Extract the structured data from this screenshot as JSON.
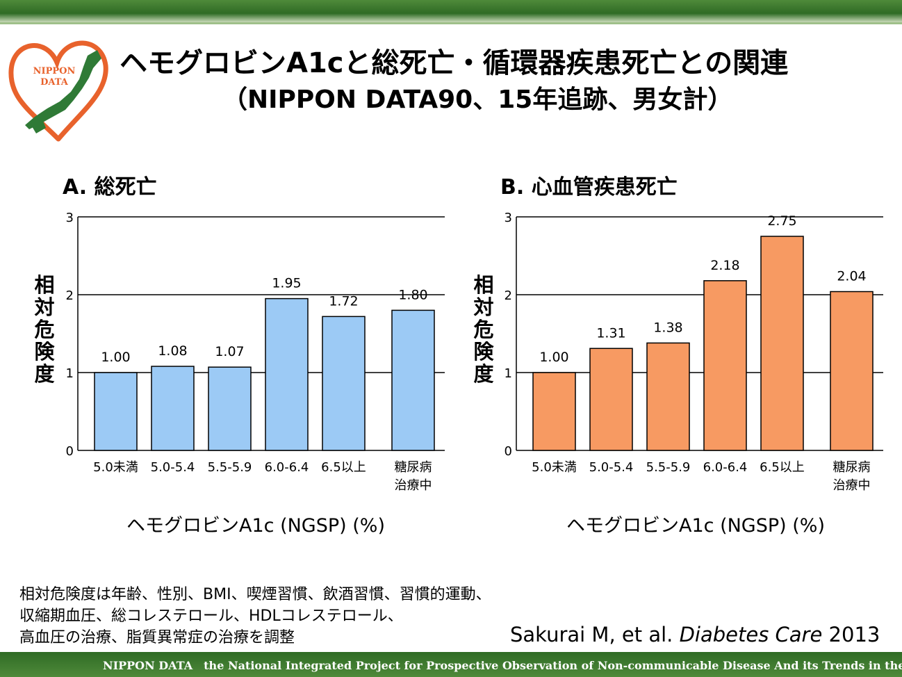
{
  "title": "ヘモグロビンA1cと総死亡・循環器疾患死亡との関連",
  "subtitle": "（NIPPON DATA90、15年追跡、男女計）",
  "logo": {
    "text_line1": "NIPPON",
    "text_line2": "DATA",
    "icon": "heart-japan-map-logo",
    "color": "#e8622c"
  },
  "panels": [
    {
      "title": "A. 総死亡",
      "ylabel": "相対危険度",
      "xlabel": "ヘモグロビンA1c (NGSP) (%)"
    },
    {
      "title": "B. 心血管疾患死亡",
      "ylabel": "相対危険度",
      "xlabel": "ヘモグロビンA1c (NGSP) (%)"
    }
  ],
  "chart_data": [
    {
      "type": "bar",
      "title": "A. 総死亡",
      "categories": [
        "5.0未満",
        "5.0-5.4",
        "5.5-5.9",
        "6.0-6.4",
        "6.5以上",
        "糖尿病治療中"
      ],
      "category_lines": [
        [
          "5.0未満"
        ],
        [
          "5.0-5.4"
        ],
        [
          "5.5-5.9"
        ],
        [
          "6.0-6.4"
        ],
        [
          "6.5以上"
        ],
        [
          "糖尿病",
          "治療中"
        ]
      ],
      "values": [
        1.0,
        1.08,
        1.07,
        1.95,
        1.72,
        1.8
      ],
      "value_labels": [
        "1.00",
        "1.08",
        "1.07",
        "1.95",
        "1.72",
        "1.80"
      ],
      "xlabel": "ヘモグロビンA1c (NGSP) (%)",
      "ylabel": "相対危険度",
      "ylim": [
        0,
        3
      ],
      "yticks": [
        "0",
        "1",
        "2",
        "3"
      ],
      "grid": true,
      "bar_color": "#9ccaf5"
    },
    {
      "type": "bar",
      "title": "B. 心血管疾患死亡",
      "categories": [
        "5.0未満",
        "5.0-5.4",
        "5.5-5.9",
        "6.0-6.4",
        "6.5以上",
        "糖尿病治療中"
      ],
      "category_lines": [
        [
          "5.0未満"
        ],
        [
          "5.0-5.4"
        ],
        [
          "5.5-5.9"
        ],
        [
          "6.0-6.4"
        ],
        [
          "6.5以上"
        ],
        [
          "糖尿病",
          "治療中"
        ]
      ],
      "values": [
        1.0,
        1.31,
        1.38,
        2.18,
        2.75,
        2.04
      ],
      "value_labels": [
        "1.00",
        "1.31",
        "1.38",
        "2.18",
        "2.75",
        "2.04"
      ],
      "xlabel": "ヘモグロビンA1c (NGSP) (%)",
      "ylabel": "相対危険度",
      "ylim": [
        0,
        3
      ],
      "yticks": [
        "0",
        "1",
        "2",
        "3"
      ],
      "grid": true,
      "bar_color": "#f79a62"
    }
  ],
  "note_lines": [
    "相対危険度は年齢、性別、BMI、喫煙習慣、飲酒習慣、習慣的運動、",
    "収縮期血圧、総コレステロール、HDLコレステロール、",
    "高血圧の治療、脂質異常症の治療を調整"
  ],
  "citation": {
    "authors": "Sakurai M, et al. ",
    "journal": "Diabetes Care",
    "year": " 2013"
  },
  "footer": "NIPPON DATA　the National Integrated Project  for Prospective Observation of Non-communicable Disease And its Trends in the Aged"
}
